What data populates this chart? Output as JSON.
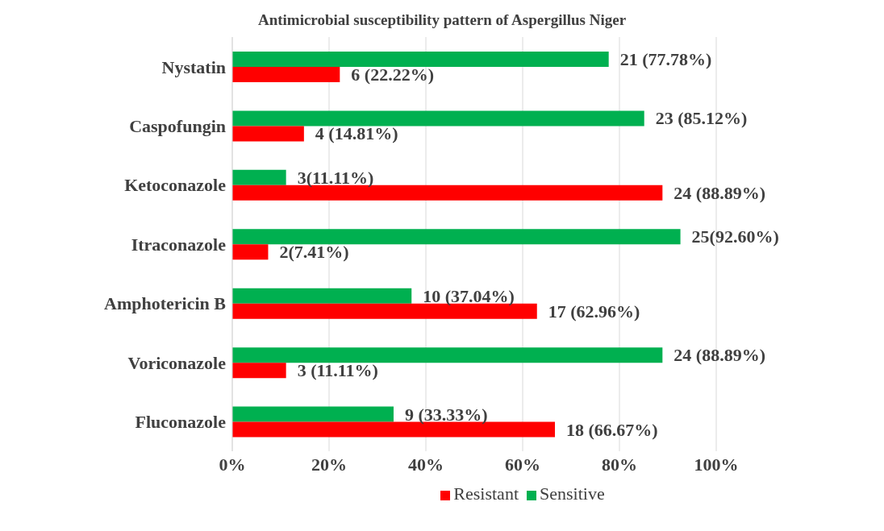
{
  "chart_data": {
    "type": "bar",
    "orientation": "horizontal",
    "title": "Antimicrobial susceptibility pattern of Aspergillus Niger",
    "categories": [
      "Nystatin",
      "Caspofungin",
      "Ketoconazole",
      "Itraconazole",
      "Amphotericin B",
      "Voriconazole",
      "Fluconazole"
    ],
    "series": [
      {
        "name": "Sensitive",
        "color": "#00b050",
        "values": [
          77.78,
          85.12,
          11.11,
          92.6,
          37.04,
          88.89,
          33.33
        ],
        "value_labels": [
          "21 (77.78%)",
          "23 (85.12%)",
          "3(11.11%)",
          "25(92.60%)",
          "10 (37.04%)",
          "24 (88.89%)",
          "9 (33.33%)"
        ]
      },
      {
        "name": "Resistant",
        "color": "#ff0000",
        "values": [
          22.22,
          14.81,
          88.89,
          7.41,
          62.96,
          11.11,
          66.67
        ],
        "value_labels": [
          "6 (22.22%)",
          "4 (14.81%)",
          "24 (88.89%)",
          "2(7.41%)",
          "17 (62.96%)",
          "3 (11.11%)",
          "18 (66.67%)"
        ]
      }
    ],
    "xlim": [
      0,
      100
    ],
    "xticks": [
      {
        "value": 0,
        "label": "0%"
      },
      {
        "value": 20,
        "label": "20%"
      },
      {
        "value": 40,
        "label": "40%"
      },
      {
        "value": 60,
        "label": "60%"
      },
      {
        "value": 80,
        "label": "80%"
      },
      {
        "value": 100,
        "label": "100%"
      }
    ],
    "grid": "x",
    "legend": "bottom"
  }
}
